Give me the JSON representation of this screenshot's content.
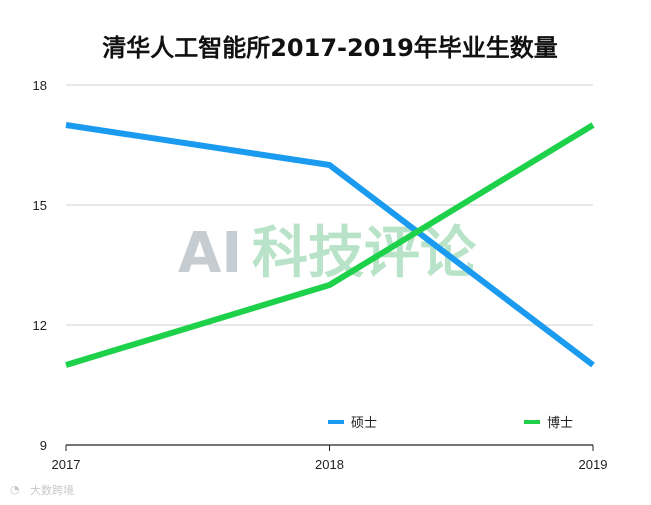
{
  "chart_data": {
    "type": "line",
    "title": "清华人工智能所2017-2019年毕业生数量",
    "xlabel": "",
    "ylabel": "",
    "categories": [
      "2017",
      "2018",
      "2019"
    ],
    "ylim": [
      9,
      18
    ],
    "yticks": [
      9,
      12,
      15,
      18
    ],
    "grid": true,
    "legend_position": "bottom-right",
    "series": [
      {
        "name": "硕士",
        "values": [
          17,
          16,
          11
        ],
        "color": "#1a9bf0"
      },
      {
        "name": "博士",
        "values": [
          11,
          13,
          17
        ],
        "color": "#1ed14a"
      }
    ]
  },
  "watermark": {
    "latin": "AI",
    "cjk": "科技评论",
    "latin_color": "#c5ccd2",
    "cjk_color": "#b9e3c8"
  },
  "source_mark": "大数跨境"
}
